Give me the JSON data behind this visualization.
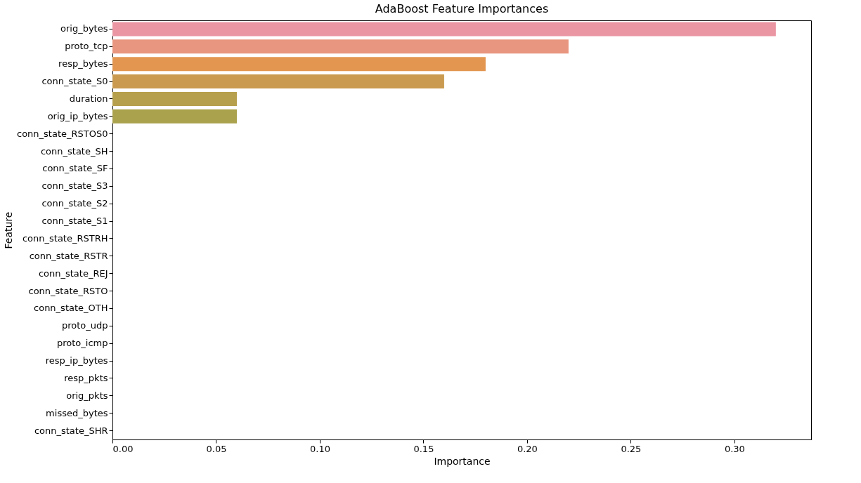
{
  "chart_data": {
    "type": "bar",
    "orientation": "horizontal",
    "title": "AdaBoost Feature Importances",
    "xlabel": "Importance",
    "ylabel": "Feature",
    "categories": [
      "orig_bytes",
      "proto_tcp",
      "resp_bytes",
      "conn_state_S0",
      "duration",
      "orig_ip_bytes",
      "conn_state_RSTOS0",
      "conn_state_SH",
      "conn_state_SF",
      "conn_state_S3",
      "conn_state_S2",
      "conn_state_S1",
      "conn_state_RSTRH",
      "conn_state_RSTR",
      "conn_state_REJ",
      "conn_state_RSTO",
      "conn_state_OTH",
      "proto_udp",
      "proto_icmp",
      "resp_ip_bytes",
      "resp_pkts",
      "orig_pkts",
      "missed_bytes",
      "conn_state_SHR"
    ],
    "values": [
      0.32,
      0.22,
      0.18,
      0.16,
      0.06,
      0.06,
      0,
      0,
      0,
      0,
      0,
      0,
      0,
      0,
      0,
      0,
      0,
      0,
      0,
      0,
      0,
      0,
      0,
      0
    ],
    "colors": [
      "#ea96a3",
      "#e8967f",
      "#e29650",
      "#c99a4f",
      "#b6a04d",
      "#aaa24c",
      "#9aa64c",
      "#87aa4d",
      "#6aaf52",
      "#52b06f",
      "#55ae8a",
      "#57ad9a",
      "#58aca7",
      "#5aabb3",
      "#5da9c0",
      "#62a6d0",
      "#7fa0e2",
      "#9b9be6",
      "#b494e6",
      "#c98de6",
      "#dc88dd",
      "#e48bcd",
      "#e88fbd",
      "#ea93b0"
    ],
    "xlim": [
      0,
      0.337
    ],
    "xticks": [
      {
        "value": 0,
        "label": "0.00"
      },
      {
        "value": 0.05,
        "label": "0.05"
      },
      {
        "value": 0.1,
        "label": "0.10"
      },
      {
        "value": 0.15,
        "label": "0.15"
      },
      {
        "value": 0.2,
        "label": "0.20"
      },
      {
        "value": 0.25,
        "label": "0.25"
      },
      {
        "value": 0.3,
        "label": "0.30"
      }
    ]
  }
}
